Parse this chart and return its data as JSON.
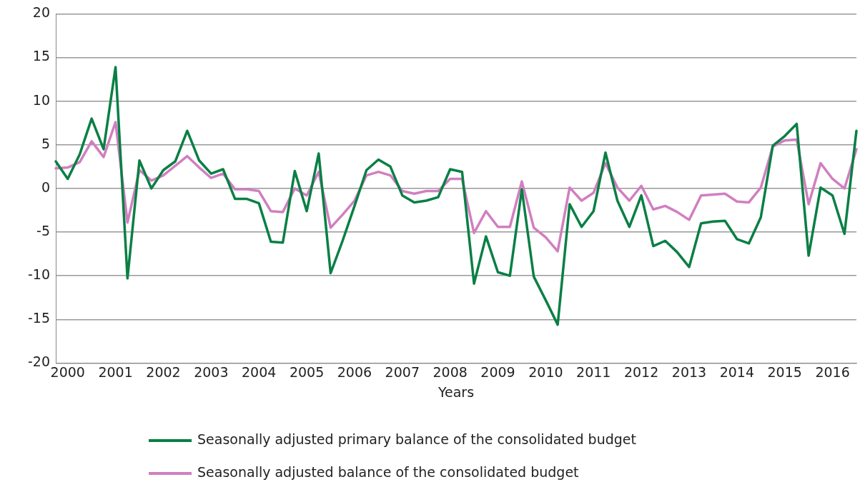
{
  "chart_data": {
    "type": "line",
    "xlabel": "Years",
    "categories": [
      null,
      "2000",
      null,
      null,
      null,
      "2001",
      null,
      null,
      null,
      "2002",
      null,
      null,
      null,
      "2003",
      null,
      null,
      null,
      "2004",
      null,
      null,
      null,
      "2005",
      null,
      null,
      null,
      "2006",
      null,
      null,
      null,
      "2007",
      null,
      null,
      null,
      "2008",
      null,
      null,
      null,
      "2009",
      null,
      null,
      null,
      "2010",
      null,
      null,
      null,
      "2011",
      null,
      null,
      null,
      "2012",
      null,
      null,
      null,
      "2013",
      null,
      null,
      null,
      "2014",
      null,
      null,
      null,
      "2015",
      null,
      null,
      null,
      "2016",
      null,
      null
    ],
    "series": [
      {
        "name": "Seasonally adjusted primary balance of the consolidated budget",
        "color": "#0a7f45",
        "values": [
          3.1,
          1.1,
          3.9,
          8.0,
          4.5,
          13.9,
          -10.3,
          3.2,
          0.0,
          2.1,
          3.1,
          6.6,
          3.2,
          1.7,
          2.2,
          -1.2,
          -1.2,
          -1.7,
          -6.1,
          -6.2,
          2.0,
          -2.6,
          4.0,
          -9.7,
          -6.0,
          -2.0,
          2.1,
          3.3,
          2.5,
          -0.8,
          -1.6,
          -1.4,
          -1.0,
          2.2,
          1.9,
          -10.9,
          -5.5,
          -9.6,
          -10.0,
          -0.1,
          -10.1,
          -12.8,
          -15.6,
          -1.8,
          -4.4,
          -2.6,
          4.1,
          -1.4,
          -4.4,
          -0.8,
          -6.6,
          -6.0,
          -7.3,
          -9.0,
          -4.0,
          -3.8,
          -3.7,
          -5.8,
          -6.3,
          -3.3,
          4.9,
          6.0,
          7.4,
          -7.7,
          0.1,
          -0.8,
          -5.2,
          6.6
        ]
      },
      {
        "name": "Seasonally adjusted balance of the consolidated budget",
        "color": "#d07fc0",
        "values": [
          2.3,
          2.4,
          3.0,
          5.4,
          3.6,
          7.6,
          -3.9,
          2.1,
          0.9,
          1.5,
          2.6,
          3.7,
          2.4,
          1.2,
          1.7,
          -0.1,
          -0.1,
          -0.3,
          -2.6,
          -2.7,
          0.0,
          -0.8,
          1.9,
          -4.5,
          -3.0,
          -1.4,
          1.5,
          1.9,
          1.5,
          -0.3,
          -0.6,
          -0.3,
          -0.3,
          1.1,
          1.1,
          -5.1,
          -2.6,
          -4.4,
          -4.4,
          0.8,
          -4.5,
          -5.6,
          -7.2,
          0.1,
          -1.4,
          -0.5,
          2.9,
          0.1,
          -1.4,
          0.3,
          -2.4,
          -2.0,
          -2.7,
          -3.6,
          -0.8,
          -0.7,
          -0.6,
          -1.5,
          -1.6,
          0.1,
          4.8,
          5.5,
          5.6,
          -1.8,
          2.9,
          1.1,
          0.0,
          4.5
        ]
      }
    ],
    "ylim": [
      -20,
      20
    ],
    "yticks": [
      -20,
      -15,
      -10,
      -5,
      0,
      5,
      10,
      15,
      20
    ],
    "grid": "y",
    "legend": "bottom",
    "marker": "none",
    "line_style": "solid"
  }
}
